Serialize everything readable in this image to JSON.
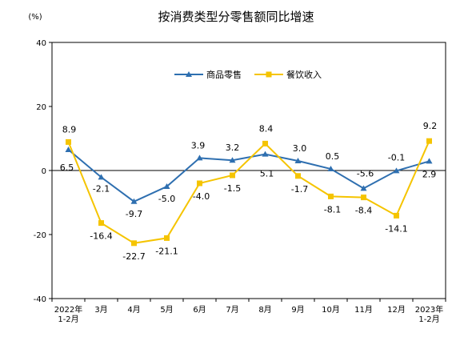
{
  "chart_data": {
    "type": "line",
    "title": "按消费类型分零售额同比增速",
    "unit_label": "(%)",
    "ylim": [
      -40,
      40
    ],
    "yticks": [
      40,
      20,
      0,
      -20,
      -40
    ],
    "categories": [
      [
        "2022年",
        "1-2月"
      ],
      [
        "3月"
      ],
      [
        "4月"
      ],
      [
        "5月"
      ],
      [
        "6月"
      ],
      [
        "7月"
      ],
      [
        "8月"
      ],
      [
        "9月"
      ],
      [
        "10月"
      ],
      [
        "11月"
      ],
      [
        "12月"
      ],
      [
        "2023年",
        "1-2月"
      ]
    ],
    "series": [
      {
        "name": "商品零售",
        "color": "#2E6FB0",
        "marker": "triangle",
        "values": [
          6.5,
          -2.1,
          -9.7,
          -5.0,
          3.9,
          3.2,
          5.1,
          3.0,
          0.5,
          -5.6,
          -0.1,
          2.9
        ],
        "labels": [
          "6.5",
          "-2.1",
          "-9.7",
          "-5.0",
          "3.9",
          "3.2",
          "5.1",
          "3.0",
          "0.5",
          "-5.6",
          "-0.1",
          "2.9"
        ]
      },
      {
        "name": "餐饮收入",
        "color": "#F5C400",
        "marker": "square",
        "values": [
          8.9,
          -16.4,
          -22.7,
          -21.1,
          -4.0,
          -1.5,
          8.4,
          -1.7,
          -8.1,
          -8.4,
          -14.1,
          9.2
        ],
        "labels": [
          "8.9",
          "-16.4",
          "-22.7",
          "-21.1",
          "-4.0",
          "-1.5",
          "8.4",
          "-1.7",
          "-8.1",
          "-8.4",
          "-14.1",
          "9.2"
        ]
      }
    ],
    "legend_position": "top-center",
    "grid": false
  }
}
